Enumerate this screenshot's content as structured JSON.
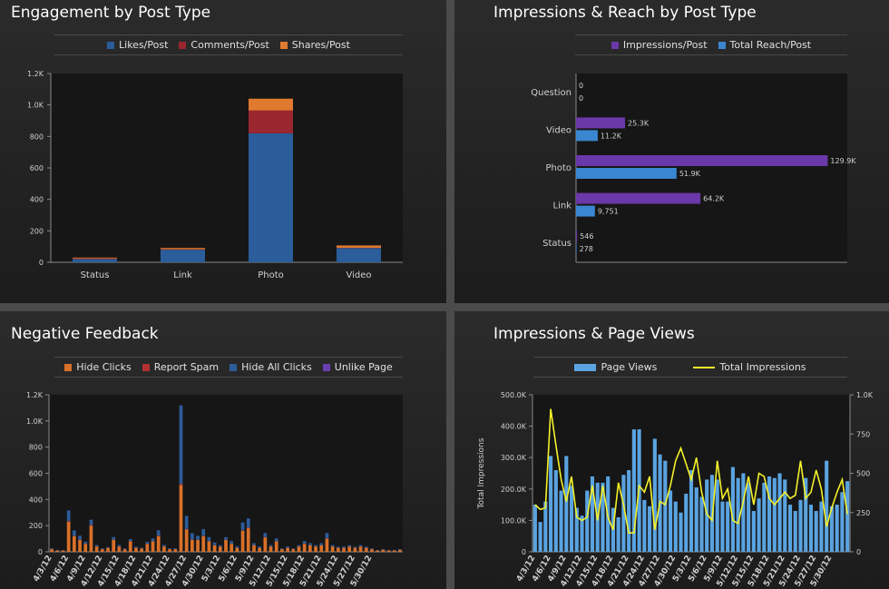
{
  "panels": [
    {
      "title": "Engagement by Post Type"
    },
    {
      "title": "Impressions & Reach by Post Type"
    },
    {
      "title": "Negative Feedback"
    },
    {
      "title": "Impressions & Page Views"
    }
  ],
  "colors": {
    "likes": "#2a5d9a",
    "comments": "#9a2630",
    "shares": "#e07a2e",
    "impressions": "#6a38a8",
    "reach": "#3a86d0",
    "hide_clicks": "#d9702a",
    "report_spam": "#b33030",
    "hide_all": "#2c5c9a",
    "unlike": "#6a3fb0",
    "page_views": "#5aa3e0",
    "total_impressions": "#f4f12a"
  },
  "legends": {
    "engagement": [
      {
        "label": "Likes/Post",
        "color": "#2a5d9a"
      },
      {
        "label": "Comments/Post",
        "color": "#9a2630"
      },
      {
        "label": "Shares/Post",
        "color": "#e07a2e"
      }
    ],
    "reach": [
      {
        "label": "Impressions/Post",
        "color": "#6a38a8"
      },
      {
        "label": "Total Reach/Post",
        "color": "#3a86d0"
      }
    ],
    "negative": [
      {
        "label": "Hide Clicks",
        "color": "#d9702a"
      },
      {
        "label": "Report Spam",
        "color": "#b33030"
      },
      {
        "label": "Hide All Clicks",
        "color": "#2c5c9a"
      },
      {
        "label": "Unlike Page",
        "color": "#6a3fb0"
      }
    ],
    "views": [
      {
        "label": "Page Views",
        "kind": "bar"
      },
      {
        "label": "Total Impressions",
        "kind": "line"
      }
    ]
  },
  "chart_data": [
    {
      "type": "bar",
      "title": "Engagement by Post Type",
      "categories": [
        "Status",
        "Link",
        "Photo",
        "Video"
      ],
      "series": [
        {
          "name": "Likes/Post",
          "values": [
            20,
            80,
            820,
            90
          ]
        },
        {
          "name": "Comments/Post",
          "values": [
            5,
            3,
            145,
            2
          ]
        },
        {
          "name": "Shares/Post",
          "values": [
            5,
            8,
            75,
            15
          ]
        }
      ],
      "ylim": [
        0,
        1200
      ],
      "yticks": [
        "0",
        "200",
        "400",
        "600",
        "800",
        "1.0K",
        "1.2K"
      ]
    },
    {
      "type": "bar",
      "orientation": "horizontal",
      "title": "Impressions & Reach by Post Type",
      "categories": [
        "Question",
        "Video",
        "Photo",
        "Link",
        "Status"
      ],
      "series": [
        {
          "name": "Impressions/Post",
          "values": [
            0,
            25300,
            129900,
            64200,
            546
          ],
          "labels": [
            "0",
            "25.3K",
            "129.9K",
            "64.2K",
            "546"
          ]
        },
        {
          "name": "Total Reach/Post",
          "values": [
            0,
            11200,
            51900,
            9751,
            278
          ],
          "labels": [
            "0",
            "11.2K",
            "51.9K",
            "9,751",
            "278"
          ]
        }
      ],
      "xlim": [
        0,
        140000
      ]
    },
    {
      "type": "bar",
      "title": "Negative Feedback",
      "x": [
        "4/3/12",
        "4/4/12",
        "4/5/12",
        "4/6/12",
        "4/7/12",
        "4/8/12",
        "4/9/12",
        "4/10/12",
        "4/11/12",
        "4/12/12",
        "4/13/12",
        "4/14/12",
        "4/15/12",
        "4/16/12",
        "4/17/12",
        "4/18/12",
        "4/19/12",
        "4/20/12",
        "4/21/12",
        "4/22/12",
        "4/23/12",
        "4/24/12",
        "4/25/12",
        "4/26/12",
        "4/27/12",
        "4/28/12",
        "4/29/12",
        "4/30/12",
        "5/1/12",
        "5/2/12",
        "5/3/12",
        "5/4/12",
        "5/5/12",
        "5/6/12",
        "5/7/12",
        "5/8/12",
        "5/9/12",
        "5/10/12",
        "5/11/12",
        "5/12/12",
        "5/13/12",
        "5/14/12",
        "5/15/12",
        "5/16/12",
        "5/17/12",
        "5/18/12",
        "5/19/12",
        "5/20/12",
        "5/21/12",
        "5/22/12",
        "5/23/12",
        "5/24/12",
        "5/25/12",
        "5/26/12",
        "5/27/12",
        "5/28/12",
        "5/29/12",
        "5/30/12",
        "5/31/12",
        "6/1/12",
        "6/2/12",
        "6/3/12",
        "6/4/12"
      ],
      "xtick_labels": [
        "4/3/12",
        "4/6/12",
        "4/9/12",
        "4/12/12",
        "4/15/12",
        "4/18/12",
        "4/21/12",
        "4/24/12",
        "4/27/12",
        "4/30/12",
        "5/3/12",
        "5/6/12",
        "5/9/12",
        "5/12/12",
        "5/15/12",
        "5/18/12",
        "5/21/12",
        "5/24/12",
        "5/27/12",
        "5/30/12"
      ],
      "series": [
        {
          "name": "Hide Clicks",
          "values": [
            20,
            10,
            10,
            230,
            120,
            90,
            60,
            200,
            40,
            20,
            30,
            90,
            40,
            20,
            80,
            30,
            25,
            60,
            80,
            120,
            40,
            20,
            20,
            510,
            170,
            90,
            90,
            120,
            80,
            50,
            40,
            90,
            60,
            30,
            160,
            180,
            50,
            30,
            110,
            40,
            80,
            20,
            30,
            20,
            40,
            60,
            50,
            40,
            50,
            100,
            40,
            30,
            30,
            40,
            30,
            40,
            30,
            20,
            10,
            15,
            10,
            10,
            15
          ]
        },
        {
          "name": "Report Spam",
          "values": [
            2,
            1,
            1,
            5,
            3,
            3,
            2,
            5,
            2,
            1,
            1,
            3,
            2,
            1,
            2,
            1,
            1,
            2,
            2,
            3,
            2,
            1,
            1,
            8,
            4,
            3,
            2,
            3,
            2,
            1,
            1,
            2,
            2,
            1,
            4,
            4,
            1,
            1,
            3,
            1,
            2,
            1,
            1,
            1,
            1,
            2,
            1,
            1,
            1,
            3,
            1,
            1,
            1,
            1,
            1,
            1,
            1,
            1,
            1,
            1,
            1,
            1,
            1
          ]
        },
        {
          "name": "Hide All Clicks",
          "values": [
            5,
            3,
            2,
            80,
            40,
            30,
            15,
            40,
            10,
            5,
            5,
            20,
            10,
            5,
            15,
            8,
            5,
            15,
            20,
            40,
            10,
            5,
            5,
            600,
            100,
            50,
            30,
            50,
            30,
            20,
            10,
            20,
            20,
            10,
            60,
            70,
            15,
            10,
            30,
            10,
            20,
            5,
            10,
            5,
            10,
            20,
            15,
            10,
            15,
            40,
            10,
            8,
            10,
            10,
            8,
            10,
            8,
            5,
            3,
            5,
            3,
            3,
            5
          ]
        },
        {
          "name": "Unlike Page",
          "values": [
            0,
            0,
            0,
            1,
            0,
            0,
            0,
            1,
            0,
            0,
            0,
            0,
            0,
            0,
            0,
            0,
            0,
            0,
            0,
            1,
            0,
            0,
            0,
            2,
            1,
            0,
            0,
            1,
            0,
            0,
            0,
            0,
            0,
            0,
            1,
            1,
            0,
            0,
            0,
            0,
            0,
            0,
            0,
            0,
            0,
            0,
            0,
            0,
            0,
            1,
            0,
            0,
            0,
            0,
            0,
            0,
            0,
            0,
            0,
            0,
            0,
            0,
            0
          ]
        }
      ],
      "ylim": [
        0,
        1200
      ],
      "yticks": [
        "0",
        "200",
        "400",
        "600",
        "800",
        "1.0K",
        "1.2K"
      ]
    },
    {
      "type": "bar",
      "title": "Impressions & Page Views",
      "x": [
        "4/3/12",
        "4/4/12",
        "4/5/12",
        "4/6/12",
        "4/7/12",
        "4/8/12",
        "4/9/12",
        "4/10/12",
        "4/11/12",
        "4/12/12",
        "4/13/12",
        "4/14/12",
        "4/15/12",
        "4/16/12",
        "4/17/12",
        "4/18/12",
        "4/19/12",
        "4/20/12",
        "4/21/12",
        "4/22/12",
        "4/23/12",
        "4/24/12",
        "4/25/12",
        "4/26/12",
        "4/27/12",
        "4/28/12",
        "4/29/12",
        "4/30/12",
        "5/1/12",
        "5/2/12",
        "5/3/12",
        "5/4/12",
        "5/5/12",
        "5/6/12",
        "5/7/12",
        "5/8/12",
        "5/9/12",
        "5/10/12",
        "5/11/12",
        "5/12/12",
        "5/13/12",
        "5/14/12",
        "5/15/12",
        "5/16/12",
        "5/17/12",
        "5/18/12",
        "5/19/12",
        "5/20/12",
        "5/21/12",
        "5/22/12",
        "5/23/12",
        "5/24/12",
        "5/25/12",
        "5/26/12",
        "5/27/12",
        "5/28/12",
        "5/29/12",
        "5/30/12",
        "5/31/12",
        "6/1/12",
        "6/2/12"
      ],
      "xtick_labels": [
        "4/3/12",
        "4/6/12",
        "4/9/12",
        "4/12/12",
        "4/15/12",
        "4/18/12",
        "4/21/12",
        "4/24/12",
        "4/27/12",
        "4/30/12",
        "5/3/12",
        "5/6/12",
        "5/9/12",
        "5/12/12",
        "5/15/12",
        "5/18/12",
        "5/21/12",
        "5/24/12",
        "5/27/12",
        "5/30/12"
      ],
      "series": [
        {
          "name": "Page Views",
          "axis": "right",
          "values": [
            300,
            190,
            320,
            610,
            520,
            390,
            610,
            420,
            280,
            230,
            390,
            480,
            440,
            440,
            480,
            280,
            220,
            490,
            520,
            780,
            780,
            330,
            290,
            720,
            620,
            580,
            390,
            320,
            250,
            370,
            520,
            410,
            350,
            460,
            490,
            460,
            320,
            320,
            540,
            470,
            500,
            440,
            260,
            340,
            440,
            480,
            470,
            500,
            460,
            300,
            260,
            330,
            470,
            300,
            260,
            320,
            580,
            290,
            300,
            380,
            450
          ]
        },
        {
          "name": "Total Impressions",
          "axis": "left",
          "values": [
            150000,
            135000,
            140000,
            455000,
            340000,
            230000,
            160000,
            240000,
            110000,
            100000,
            110000,
            210000,
            100000,
            210000,
            110000,
            70000,
            220000,
            150000,
            60000,
            60000,
            210000,
            190000,
            240000,
            70000,
            160000,
            150000,
            210000,
            290000,
            330000,
            280000,
            230000,
            300000,
            190000,
            120000,
            100000,
            290000,
            170000,
            200000,
            100000,
            90000,
            160000,
            240000,
            150000,
            250000,
            240000,
            170000,
            150000,
            170000,
            190000,
            170000,
            180000,
            290000,
            170000,
            190000,
            260000,
            200000,
            80000,
            140000,
            190000,
            230000,
            120000
          ]
        }
      ],
      "ylabel": "Total Impressions",
      "ylim": [
        0,
        500000
      ],
      "y2lim": [
        0,
        1000
      ],
      "yticks": [
        "0",
        "100.0K",
        "200.0K",
        "300.0K",
        "400.0K",
        "500.0K"
      ],
      "y2ticks": [
        "0",
        "250",
        "500",
        "750",
        "1.0K"
      ]
    }
  ]
}
